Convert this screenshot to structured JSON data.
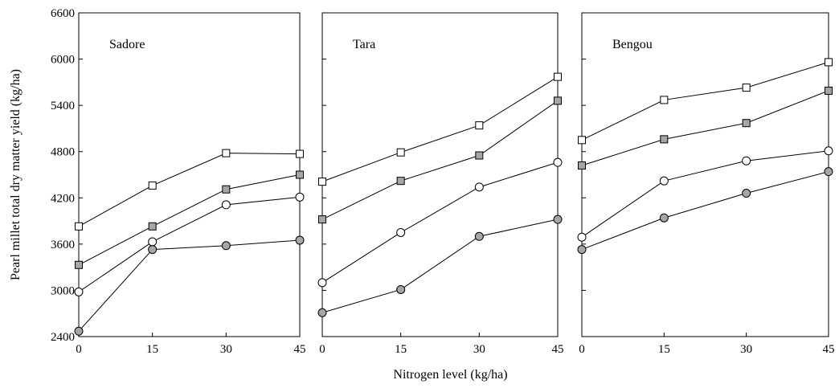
{
  "chart_data": {
    "type": "line",
    "xlabel": "Nitrogen level (kg/ha)",
    "ylabel": "Pearl millet total dry matter yield (kg/ha)",
    "x": [
      0,
      15,
      30,
      45
    ],
    "x_ticks": [
      "0",
      "15",
      "30",
      "45"
    ],
    "ylim": [
      2400,
      6600
    ],
    "y_ticks": [
      "2400",
      "3000",
      "3600",
      "4200",
      "4800",
      "5400",
      "6000",
      "6600"
    ],
    "grid": false,
    "series_styles": [
      {
        "marker": "square",
        "fill": "#ffffff"
      },
      {
        "marker": "square",
        "fill": "#a6a6a6"
      },
      {
        "marker": "circle",
        "fill": "#ffffff"
      },
      {
        "marker": "circle",
        "fill": "#a6a6a6"
      }
    ],
    "panels": [
      {
        "title": "Sadore",
        "series": [
          {
            "values": [
              3830,
              4360,
              4780,
              4770
            ]
          },
          {
            "values": [
              3330,
              3830,
              4310,
              4500
            ]
          },
          {
            "values": [
              2980,
              3630,
              4110,
              4210
            ]
          },
          {
            "values": [
              2470,
              3530,
              3580,
              3650
            ]
          }
        ]
      },
      {
        "title": "Tara",
        "series": [
          {
            "values": [
              4410,
              4790,
              5140,
              5770
            ]
          },
          {
            "values": [
              3920,
              4420,
              4750,
              5460
            ]
          },
          {
            "values": [
              3100,
              3750,
              4340,
              4660
            ]
          },
          {
            "values": [
              2710,
              3010,
              3700,
              3920
            ]
          }
        ]
      },
      {
        "title": "Bengou",
        "series": [
          {
            "values": [
              4950,
              5470,
              5630,
              5960
            ]
          },
          {
            "values": [
              4620,
              4960,
              5170,
              5590
            ]
          },
          {
            "values": [
              3690,
              4420,
              4680,
              4810
            ]
          },
          {
            "values": [
              3530,
              3940,
              4260,
              4540
            ]
          }
        ]
      }
    ]
  }
}
